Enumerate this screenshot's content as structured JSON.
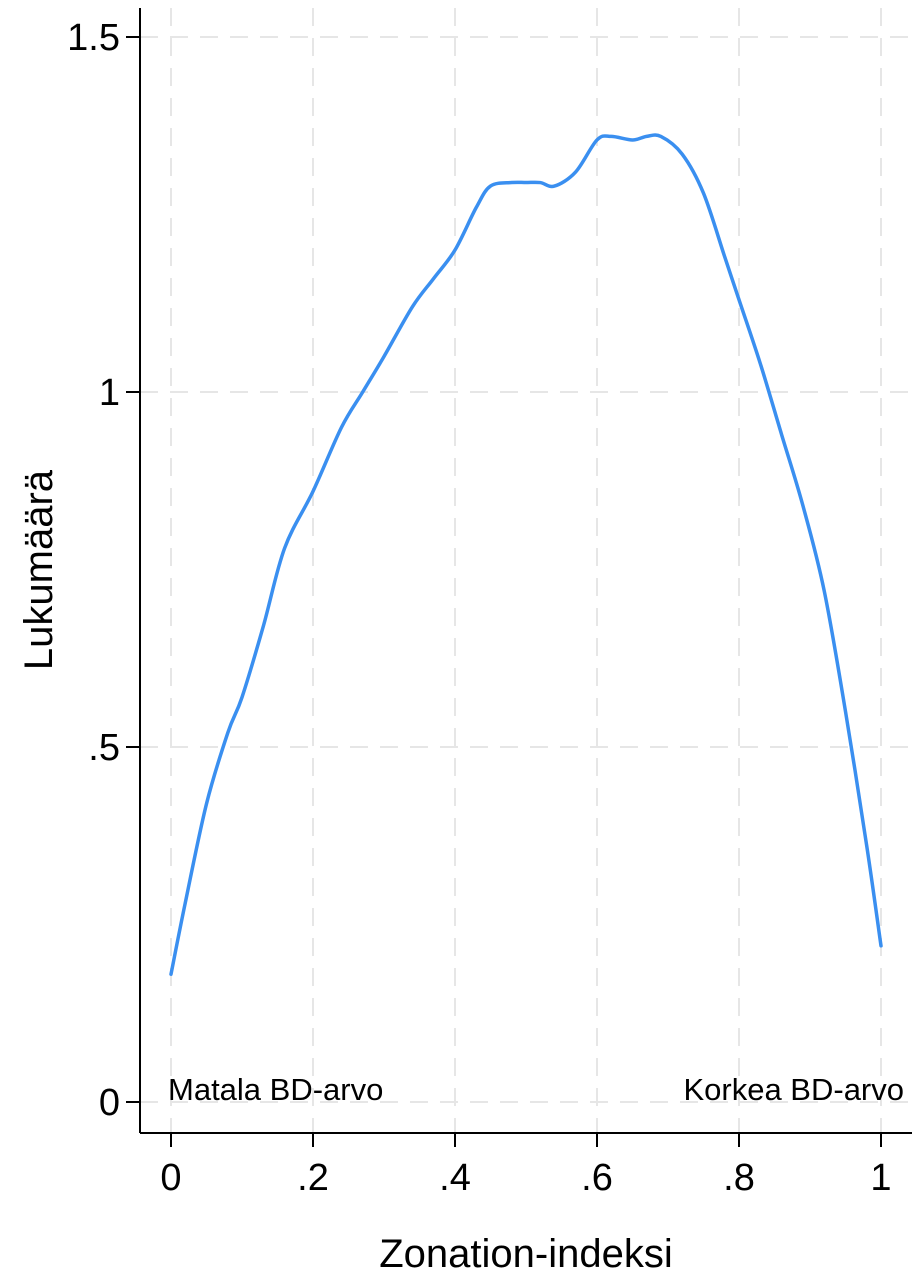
{
  "chart_data": {
    "type": "line",
    "xlabel": "Zonation-indeksi",
    "ylabel": "Lukumäärä",
    "xlim": [
      0,
      1
    ],
    "ylim": [
      0,
      1.5
    ],
    "grid": true,
    "line_color": "#3a8ff0",
    "grid_color": "#e6e6e6",
    "x_ticks": [
      {
        "value": 0,
        "label": "0"
      },
      {
        "value": 0.2,
        "label": ".2"
      },
      {
        "value": 0.4,
        "label": ".4"
      },
      {
        "value": 0.6,
        "label": ".6"
      },
      {
        "value": 0.8,
        "label": ".8"
      },
      {
        "value": 1,
        "label": "1"
      }
    ],
    "y_ticks": [
      {
        "value": 0,
        "label": "0"
      },
      {
        "value": 0.5,
        "label": ".5"
      },
      {
        "value": 1,
        "label": "1"
      },
      {
        "value": 1.5,
        "label": "1.5"
      }
    ],
    "annotations": {
      "left": "Matala BD-arvo",
      "right": "Korkea BD-arvo"
    },
    "series": [
      {
        "x": [
          0,
          0.02,
          0.05,
          0.08,
          0.1,
          0.13,
          0.16,
          0.2,
          0.24,
          0.27,
          0.3,
          0.34,
          0.37,
          0.4,
          0.43,
          0.45,
          0.48,
          0.5,
          0.52,
          0.54,
          0.57,
          0.6,
          0.62,
          0.65,
          0.67,
          0.69,
          0.72,
          0.75,
          0.78,
          0.8,
          0.83,
          0.86,
          0.89,
          0.92,
          0.95,
          0.98,
          1
        ],
        "y": [
          0.18,
          0.28,
          0.42,
          0.52,
          0.57,
          0.67,
          0.78,
          0.86,
          0.95,
          1.0,
          1.05,
          1.12,
          1.16,
          1.2,
          1.26,
          1.29,
          1.295,
          1.295,
          1.295,
          1.29,
          1.31,
          1.355,
          1.36,
          1.355,
          1.36,
          1.36,
          1.335,
          1.28,
          1.19,
          1.13,
          1.04,
          0.94,
          0.84,
          0.72,
          0.55,
          0.36,
          0.22
        ]
      }
    ]
  }
}
